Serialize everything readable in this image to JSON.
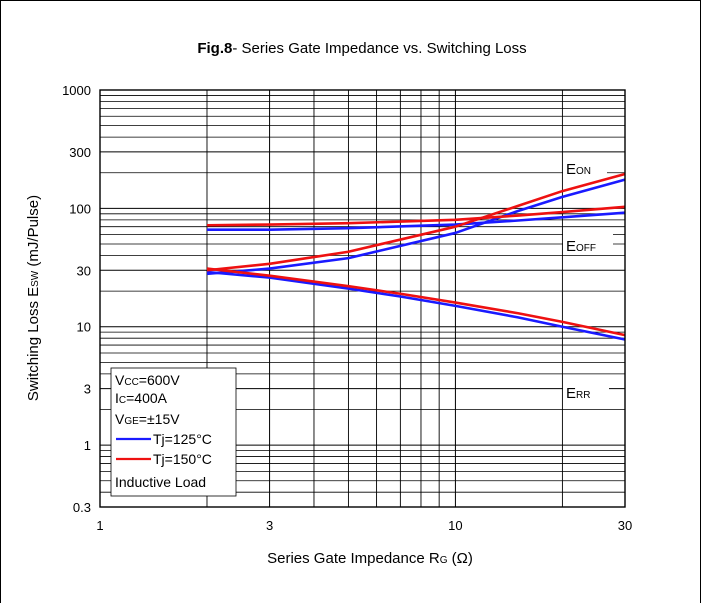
{
  "chart_data": {
    "type": "line",
    "title_bold": "Fig.8",
    "title_rest": "- Series Gate Impedance vs. Switching Loss",
    "xlabel": {
      "main": "Series Gate Impedance R",
      "sub": "G",
      "unit": " (Ω)"
    },
    "ylabel": {
      "main": "Switching Loss E",
      "sub": "SW",
      "unit": " (mJ/Pulse)"
    },
    "x_scale": "log",
    "y_scale": "log",
    "xlim": [
      1,
      30
    ],
    "ylim": [
      0.3,
      1000
    ],
    "x_ticks": [
      1,
      3,
      10,
      30
    ],
    "x_tick_labels": [
      "1",
      "3",
      "10",
      "30"
    ],
    "y_ticks": [
      0.3,
      1,
      3,
      10,
      30,
      100,
      300,
      1000
    ],
    "y_tick_labels": [
      "0.3",
      "1",
      "3",
      "10",
      "30",
      "100",
      "300",
      "1000"
    ],
    "grid": true,
    "colors": {
      "tj125": "#1a1aff",
      "tj150": "#ee1111"
    },
    "curve_labels": {
      "eon": {
        "main": "E",
        "sub": "ON"
      },
      "eoff": {
        "main": "E",
        "sub": "OFF"
      },
      "err": {
        "main": "E",
        "sub": "RR"
      }
    },
    "conditions": {
      "vcc": {
        "main": "V",
        "sub": "CC",
        "rest": "=600V"
      },
      "ic": {
        "main": "I",
        "sub": "C",
        "rest": "=400A"
      },
      "vge": {
        "main": "V",
        "sub": "GE",
        "rest": "=±15V"
      },
      "load": "Inductive Load"
    },
    "legend": [
      {
        "name": "Tj=125°C",
        "color": "#1a1aff"
      },
      {
        "name": "Tj=150°C",
        "color": "#ee1111"
      }
    ],
    "series": [
      {
        "group": "EON",
        "temp": "Tj=125°C",
        "color": "#1a1aff",
        "x": [
          2,
          3,
          5,
          10,
          15,
          20,
          30
        ],
        "y": [
          28,
          31,
          38,
          62,
          95,
          125,
          175
        ]
      },
      {
        "group": "EON",
        "temp": "Tj=150°C",
        "color": "#ee1111",
        "x": [
          2,
          3,
          5,
          10,
          15,
          20,
          30
        ],
        "y": [
          30,
          34,
          43,
          70,
          105,
          140,
          195
        ]
      },
      {
        "group": "EOFF",
        "temp": "Tj=125°C",
        "color": "#1a1aff",
        "x": [
          2,
          3,
          5,
          10,
          15,
          20,
          30
        ],
        "y": [
          66,
          66,
          68,
          73,
          79,
          84,
          92
        ]
      },
      {
        "group": "EOFF",
        "temp": "Tj=150°C",
        "color": "#ee1111",
        "x": [
          2,
          3,
          5,
          10,
          15,
          20,
          30
        ],
        "y": [
          72,
          73,
          75,
          80,
          87,
          93,
          103
        ]
      },
      {
        "group": "ERR",
        "temp": "Tj=125°C",
        "color": "#1a1aff",
        "x": [
          2,
          3,
          5,
          7,
          10,
          15,
          20,
          30
        ],
        "y": [
          29,
          26,
          21,
          18,
          15,
          12,
          10,
          7.8
        ]
      },
      {
        "group": "ERR",
        "temp": "Tj=150°C",
        "color": "#ee1111",
        "x": [
          2,
          3,
          5,
          7,
          10,
          15,
          20,
          30
        ],
        "y": [
          31,
          27,
          22,
          19,
          16,
          13,
          11,
          8.5
        ]
      }
    ]
  }
}
